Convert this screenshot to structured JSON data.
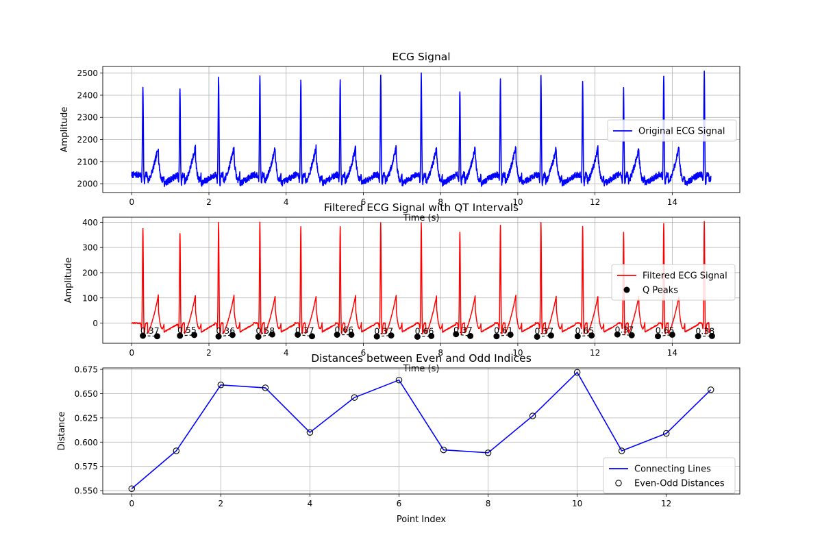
{
  "chart_data": [
    {
      "type": "line",
      "title": "ECG Signal",
      "xlabel": "Time (s)",
      "ylabel": "Amplitude",
      "xlim": [
        -0.75,
        15.75
      ],
      "ylim": [
        1960,
        2530
      ],
      "xticks": [
        0,
        2,
        4,
        6,
        8,
        10,
        12,
        14
      ],
      "yticks": [
        2000,
        2100,
        2200,
        2300,
        2400,
        2500
      ],
      "grid": true,
      "legend": {
        "placement": "right",
        "entries": [
          {
            "label": "Original ECG Signal",
            "color": "#0000ff",
            "kind": "line"
          }
        ]
      },
      "series": [
        {
          "name": "Original ECG Signal",
          "color": "#0000ff",
          "duration": 15,
          "baseline": 2040,
          "noise": 14,
          "beats": [
            [
              0.29,
              2448
            ],
            [
              1.25,
              2432
            ],
            [
              2.25,
              2482
            ],
            [
              3.32,
              2503
            ],
            [
              4.38,
              2475
            ],
            [
              5.4,
              2480
            ],
            [
              6.45,
              2485
            ],
            [
              7.5,
              2492
            ],
            [
              8.5,
              2428
            ],
            [
              9.55,
              2467
            ],
            [
              10.6,
              2484
            ],
            [
              11.68,
              2458
            ],
            [
              12.74,
              2425
            ],
            [
              13.78,
              2483
            ],
            [
              14.83,
              2505
            ]
          ]
        }
      ]
    },
    {
      "type": "line",
      "title": "Filtered ECG Signal with QT Intervals",
      "xlabel": "Time (s)",
      "ylabel": "Amplitude",
      "xlim": [
        -0.75,
        15.75
      ],
      "ylim": [
        -80,
        420
      ],
      "xticks": [
        0,
        2,
        4,
        6,
        8,
        10,
        12,
        14
      ],
      "yticks": [
        0,
        100,
        200,
        300,
        400
      ],
      "grid": true,
      "legend": {
        "placement": "right",
        "entries": [
          {
            "label": "Filtered ECG Signal",
            "color": "#ff0000",
            "kind": "line"
          },
          {
            "label": "Q Peaks",
            "color": "#000000",
            "kind": "marker"
          }
        ]
      },
      "series": [
        {
          "name": "Filtered ECG Signal",
          "color": "#ff0000",
          "duration": 15,
          "baseline": 0,
          "noise": 0,
          "beats": [
            [
              0.29,
              378
            ],
            [
              1.25,
              360
            ],
            [
              2.25,
              402
            ],
            [
              3.32,
              402
            ],
            [
              4.38,
              384
            ],
            [
              5.4,
              386
            ],
            [
              6.45,
              400
            ],
            [
              7.5,
              400
            ],
            [
              8.5,
              364
            ],
            [
              9.55,
              390
            ],
            [
              10.6,
              402
            ],
            [
              11.68,
              386
            ],
            [
              12.74,
              362
            ],
            [
              13.78,
              400
            ],
            [
              14.83,
              406
            ]
          ]
        },
        {
          "name": "Q Peaks",
          "color": "#000000",
          "points": [
            [
              0.29,
              -50
            ],
            [
              0.66,
              -52
            ],
            [
              1.25,
              -50
            ],
            [
              1.62,
              -47
            ],
            [
              2.25,
              -53
            ],
            [
              2.61,
              -47
            ],
            [
              3.28,
              -54
            ],
            [
              3.64,
              -45
            ],
            [
              4.3,
              -46
            ],
            [
              4.67,
              -52
            ],
            [
              5.32,
              -46
            ],
            [
              5.69,
              -46
            ],
            [
              6.35,
              -53
            ],
            [
              6.72,
              -49
            ],
            [
              7.4,
              -54
            ],
            [
              7.76,
              -51
            ],
            [
              8.4,
              -44
            ],
            [
              8.77,
              -51
            ],
            [
              9.45,
              -52
            ],
            [
              9.81,
              -46
            ],
            [
              10.5,
              -54
            ],
            [
              10.86,
              -49
            ],
            [
              11.55,
              -52
            ],
            [
              11.91,
              -49
            ],
            [
              12.58,
              -45
            ],
            [
              12.95,
              -48
            ],
            [
              13.63,
              -52
            ],
            [
              14.0,
              -46
            ],
            [
              14.67,
              -52
            ],
            [
              15.03,
              -51
            ]
          ]
        }
      ],
      "qt_labels": [
        {
          "x": 0.47,
          "y": -50,
          "text": "0.37"
        },
        {
          "x": 1.43,
          "y": -48,
          "text": "0.55"
        },
        {
          "x": 2.43,
          "y": -50,
          "text": "0.36"
        },
        {
          "x": 3.46,
          "y": -50,
          "text": "0.58"
        },
        {
          "x": 4.48,
          "y": -49,
          "text": "0.37"
        },
        {
          "x": 5.5,
          "y": -46,
          "text": "0.66"
        },
        {
          "x": 6.53,
          "y": -51,
          "text": "0.37"
        },
        {
          "x": 7.58,
          "y": -52,
          "text": "0.66"
        },
        {
          "x": 8.58,
          "y": -47,
          "text": "0.37"
        },
        {
          "x": 9.63,
          "y": -49,
          "text": "0.61"
        },
        {
          "x": 10.68,
          "y": -51,
          "text": "0.37"
        },
        {
          "x": 11.73,
          "y": -50,
          "text": "0.65"
        },
        {
          "x": 12.76,
          "y": -46,
          "text": "0.37"
        },
        {
          "x": 13.81,
          "y": -49,
          "text": "0.65"
        },
        {
          "x": 14.85,
          "y": -51,
          "text": "0.38"
        }
      ]
    },
    {
      "type": "line",
      "title": "Distances between Even and Odd Indices",
      "xlabel": "Point Index",
      "ylabel": "Distance",
      "xlim": [
        -0.65,
        13.65
      ],
      "ylim": [
        0.5465,
        0.6765
      ],
      "xticks": [
        0,
        2,
        4,
        6,
        8,
        10,
        12
      ],
      "yticks": [
        0.55,
        0.575,
        0.6,
        0.625,
        0.65,
        0.675
      ],
      "ytick_labels": [
        "0.550",
        "0.575",
        "0.600",
        "0.625",
        "0.650",
        "0.675"
      ],
      "grid": true,
      "legend": {
        "placement": "lower right",
        "entries": [
          {
            "label": "Connecting Lines",
            "color": "#0000ff",
            "kind": "line"
          },
          {
            "label": "Even-Odd Distances",
            "color": "#000000",
            "kind": "open-marker"
          }
        ]
      },
      "x": [
        0,
        1,
        2,
        3,
        4,
        5,
        6,
        7,
        8,
        9,
        10,
        11,
        12,
        13
      ],
      "series": [
        {
          "name": "Connecting Lines",
          "color": "#0000ff",
          "values": [
            0.552,
            0.591,
            0.659,
            0.656,
            0.61,
            0.646,
            0.664,
            0.592,
            0.589,
            0.627,
            0.672,
            0.591,
            0.609,
            0.654
          ]
        },
        {
          "name": "Even-Odd Distances",
          "color": "#000000",
          "values": [
            0.552,
            0.591,
            0.659,
            0.656,
            0.61,
            0.646,
            0.664,
            0.592,
            0.589,
            0.627,
            0.672,
            0.591,
            0.609,
            0.654
          ]
        }
      ]
    }
  ]
}
